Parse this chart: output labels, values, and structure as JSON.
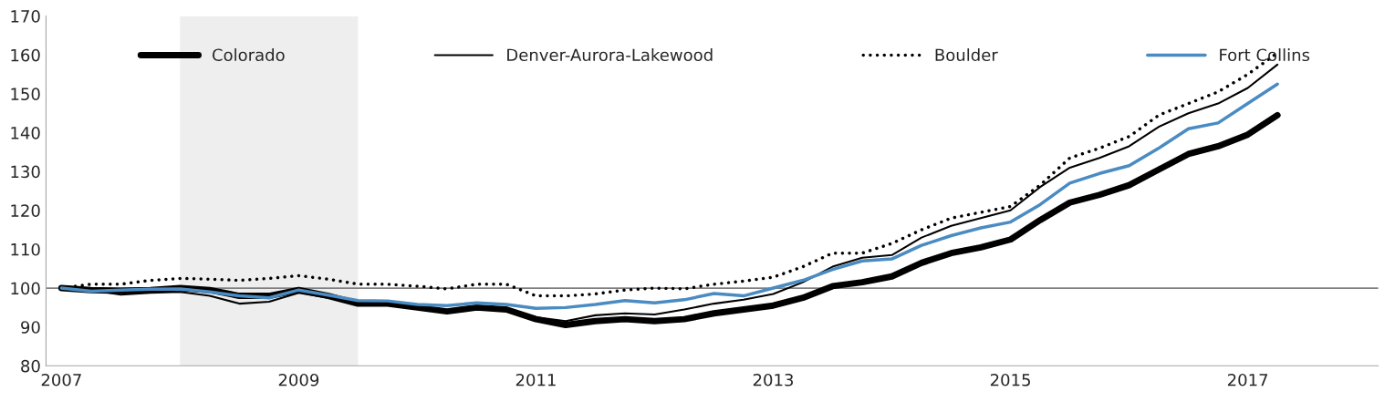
{
  "chart_data": {
    "type": "line",
    "x": [
      2007,
      2007.25,
      2007.5,
      2007.75,
      2008,
      2008.25,
      2008.5,
      2008.75,
      2009,
      2009.25,
      2009.5,
      2009.75,
      2010,
      2010.25,
      2010.5,
      2010.75,
      2011,
      2011.25,
      2011.5,
      2011.75,
      2012,
      2012.25,
      2012.5,
      2012.75,
      2013,
      2013.25,
      2013.5,
      2013.75,
      2014,
      2014.25,
      2014.5,
      2014.75,
      2015,
      2015.25,
      2015.5,
      2015.75,
      2016,
      2016.25,
      2016.5,
      2016.75,
      2017,
      2017.25
    ],
    "series": [
      {
        "name": "Colorado",
        "color": "#000000",
        "line_style": "solid",
        "values": [
          100,
          99.5,
          99.3,
          99.5,
          100,
          99.5,
          98,
          98,
          99.5,
          98,
          96,
          96,
          95,
          94,
          95,
          94.5,
          92,
          90.5,
          91.5,
          92,
          91.5,
          92,
          93.5,
          94.5,
          95.5,
          97.5,
          100.5,
          101.5,
          103,
          106.5,
          109,
          110.5,
          112.5,
          117.5,
          122,
          124,
          126.5,
          130.5,
          134.5,
          136.5,
          139.5,
          144.5
        ]
      },
      {
        "name": "Denver-Aurora-Lakewood",
        "color": "#000000",
        "line_style": "solid",
        "values": [
          100,
          99.5,
          98.3,
          98.8,
          99,
          98,
          96,
          96.5,
          98.8,
          97.5,
          96,
          95.8,
          95,
          94,
          95,
          94.5,
          92.5,
          91.5,
          93,
          93.5,
          93.2,
          94.5,
          96,
          97,
          98.5,
          101.5,
          105.5,
          107.8,
          108.5,
          113,
          116,
          118,
          120,
          126,
          131,
          133.5,
          136.5,
          141.5,
          145,
          147.5,
          151.5,
          157.5
        ]
      },
      {
        "name": "Boulder",
        "color": "#000000",
        "line_style": "dotted",
        "values": [
          100,
          101,
          101,
          102,
          102.5,
          102.3,
          102,
          102.5,
          103.2,
          102.3,
          101,
          101,
          100.5,
          99.8,
          101,
          101,
          98,
          98,
          98.5,
          99.5,
          100,
          99.8,
          101,
          101.8,
          102.8,
          105.5,
          109,
          109,
          111.5,
          115,
          118,
          119.5,
          121,
          126.5,
          133.5,
          136,
          139,
          144.5,
          147.5,
          150.5,
          155,
          160.5
        ]
      },
      {
        "name": "Fort Collins",
        "color": "#4a8bc2",
        "line_style": "solid",
        "values": [
          100,
          99.2,
          99.5,
          99.7,
          99.8,
          99,
          98,
          97.5,
          99.5,
          98.2,
          96.8,
          96.7,
          95.8,
          95.5,
          96.2,
          95.8,
          94.8,
          95,
          95.8,
          96.8,
          96.2,
          97,
          98.6,
          98,
          100,
          102,
          104.8,
          107,
          107.5,
          111,
          113.5,
          115.5,
          117,
          121.5,
          127,
          129.5,
          131.5,
          136,
          141,
          142.5,
          147.5,
          152.5
        ]
      }
    ],
    "xlim": [
      2006.87,
      2018.1
    ],
    "xticks": [
      2007,
      2009,
      2011,
      2013,
      2015,
      2017
    ],
    "ylim": [
      80,
      170
    ],
    "yticks": [
      80,
      90,
      100,
      110,
      120,
      130,
      140,
      150,
      160,
      170
    ],
    "ref_lines": [
      {
        "axis": "y",
        "value": 100,
        "color": "#808080"
      }
    ],
    "bands": [
      {
        "axis": "x",
        "from": 2008.0,
        "to": 2009.5,
        "color": "#eeeeee"
      }
    ],
    "grid": false,
    "legend": "top",
    "marker": "none"
  }
}
